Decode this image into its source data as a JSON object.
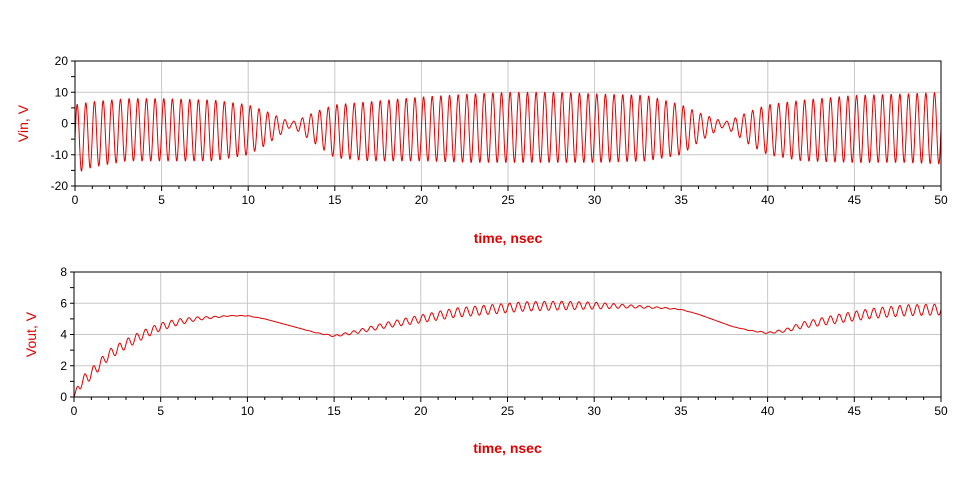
{
  "colors": {
    "trace": "#e00000",
    "grid": "#c8c8c8",
    "frame": "#000000",
    "label": "#e00000"
  },
  "chart_data": [
    {
      "type": "line",
      "xlabel": "time, nsec",
      "ylabel": "Vin, V",
      "xlim": [
        0,
        50
      ],
      "ylim": [
        -20,
        20
      ],
      "xticks": [
        0,
        5,
        10,
        15,
        20,
        25,
        30,
        35,
        40,
        45,
        50
      ],
      "yticks": [
        -20,
        -10,
        0,
        10,
        20
      ],
      "grid": true,
      "series": [
        {
          "carrier_cycles_per_nsec": 2.0,
          "envelope_t": [
            0,
            1,
            2,
            3,
            5,
            8,
            10,
            11,
            12,
            12.5,
            13,
            14,
            15,
            17,
            20,
            23,
            25,
            28,
            30,
            33,
            35,
            36,
            37,
            37.5,
            38,
            39,
            40,
            42,
            45,
            48,
            50
          ],
          "envelope_upper": [
            6,
            7,
            7.5,
            8,
            8,
            7.5,
            6,
            4,
            1.5,
            0.5,
            1.5,
            4,
            6,
            7,
            8.5,
            9.5,
            10,
            10,
            9.5,
            9,
            6,
            3.5,
            1.5,
            0.5,
            1.5,
            4,
            6,
            7.5,
            9,
            9.5,
            10
          ],
          "envelope_lower": [
            -16,
            -14,
            -13,
            -12,
            -12,
            -12,
            -10,
            -7,
            -3,
            -1,
            -3,
            -7,
            -11,
            -12,
            -12,
            -12.5,
            -12.5,
            -12.5,
            -12.5,
            -12,
            -10,
            -6,
            -2.5,
            -1,
            -3,
            -7,
            -10,
            -12,
            -12.5,
            -12.5,
            -13
          ]
        }
      ]
    },
    {
      "type": "line",
      "xlabel": "time, nsec",
      "ylabel": "Vout, V",
      "xlim": [
        0,
        50
      ],
      "ylim": [
        0,
        8
      ],
      "xticks": [
        0,
        5,
        10,
        15,
        20,
        25,
        30,
        35,
        40,
        45,
        50
      ],
      "yticks": [
        0,
        2,
        4,
        6,
        8
      ],
      "grid": true,
      "series": [
        {
          "ripple_cycles_per_nsec": 2.0,
          "t": [
            0,
            0.3,
            1,
            2,
            3,
            4,
            5,
            6,
            7,
            8,
            9,
            10,
            11,
            12,
            13,
            14,
            15,
            16,
            18,
            20,
            22,
            24,
            25,
            26,
            28,
            30,
            32,
            34,
            35,
            36,
            37,
            38,
            39,
            40,
            41,
            42,
            44,
            46,
            48,
            50
          ],
          "v": [
            0,
            0.8,
            1.5,
            2.7,
            3.4,
            4.0,
            4.5,
            4.8,
            5.0,
            5.1,
            5.2,
            5.2,
            5.0,
            4.7,
            4.4,
            4.1,
            3.9,
            4.1,
            4.6,
            5.0,
            5.4,
            5.6,
            5.7,
            5.8,
            5.85,
            5.85,
            5.8,
            5.7,
            5.6,
            5.3,
            4.9,
            4.5,
            4.25,
            4.1,
            4.25,
            4.6,
            5.0,
            5.35,
            5.55,
            5.6
          ],
          "ripple": [
            0,
            0.35,
            0.35,
            0.32,
            0.3,
            0.28,
            0.25,
            0.2,
            0.12,
            0.06,
            0.02,
            0.02,
            0.0,
            0.0,
            0.0,
            0.02,
            0.05,
            0.1,
            0.18,
            0.25,
            0.3,
            0.3,
            0.3,
            0.3,
            0.28,
            0.22,
            0.1,
            0.04,
            0.02,
            0.0,
            0.0,
            0.0,
            0.02,
            0.05,
            0.1,
            0.2,
            0.28,
            0.32,
            0.35,
            0.35
          ]
        }
      ]
    }
  ]
}
